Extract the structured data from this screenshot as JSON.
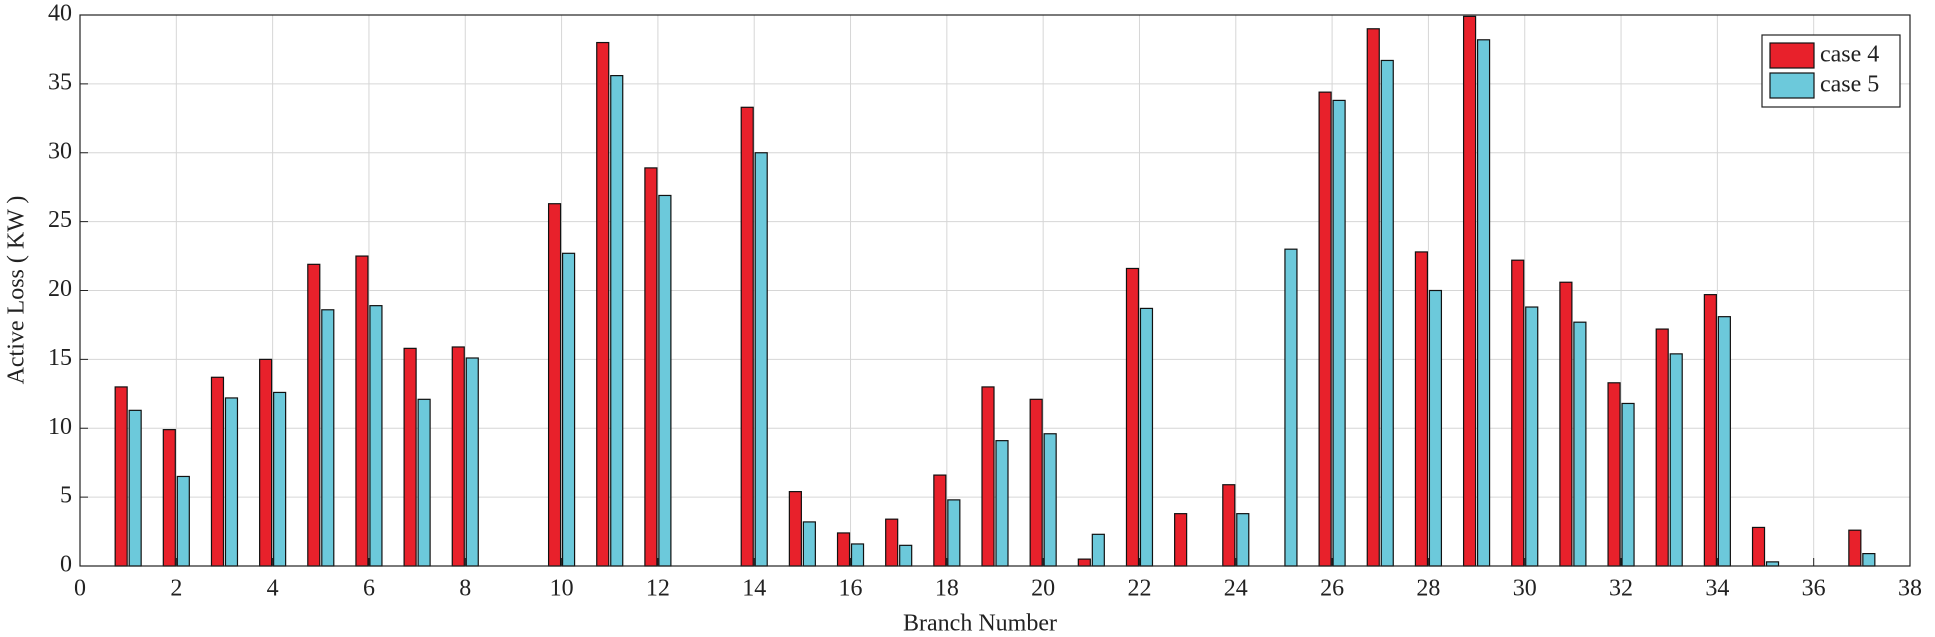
{
  "chart_data": {
    "type": "bar",
    "x_label": "Branch Number",
    "y_label": "Active Loss ( KW )",
    "x": [
      1,
      2,
      3,
      4,
      5,
      6,
      7,
      8,
      9,
      10,
      11,
      12,
      13,
      14,
      15,
      16,
      17,
      18,
      19,
      20,
      21,
      22,
      23,
      24,
      25,
      26,
      27,
      28,
      29,
      30,
      31,
      32,
      33,
      34,
      35,
      36,
      37
    ],
    "series": [
      {
        "name": "case 4",
        "color": "#e8212b",
        "values": [
          13.0,
          9.9,
          13.7,
          15.0,
          21.9,
          22.5,
          15.8,
          15.9,
          0,
          26.3,
          38.0,
          28.9,
          0,
          33.3,
          5.4,
          2.4,
          3.4,
          6.6,
          13.0,
          12.1,
          0.5,
          21.6,
          3.8,
          5.9,
          0,
          34.4,
          39.0,
          22.8,
          39.9,
          22.2,
          20.6,
          13.3,
          17.2,
          19.7,
          2.8,
          0,
          2.6
        ]
      },
      {
        "name": "case 5",
        "color": "#6cc9db",
        "values": [
          11.3,
          6.5,
          12.2,
          12.6,
          18.6,
          18.9,
          12.1,
          15.1,
          0,
          22.7,
          35.6,
          26.9,
          0,
          30.0,
          3.2,
          1.6,
          1.5,
          4.8,
          9.1,
          9.6,
          2.3,
          18.7,
          0,
          3.8,
          23.0,
          33.8,
          36.7,
          20.0,
          38.2,
          18.8,
          17.7,
          11.8,
          15.4,
          18.1,
          0.3,
          0,
          0.9
        ]
      }
    ],
    "xlim": [
      0,
      38
    ],
    "xticks": [
      0,
      2,
      4,
      6,
      8,
      10,
      12,
      14,
      16,
      18,
      20,
      22,
      24,
      26,
      28,
      30,
      32,
      34,
      36,
      38
    ],
    "ylim": [
      0,
      40
    ],
    "yticks": [
      0,
      5,
      10,
      15,
      20,
      25,
      30,
      35,
      40
    ],
    "grid": true,
    "legend": "top-right"
  }
}
